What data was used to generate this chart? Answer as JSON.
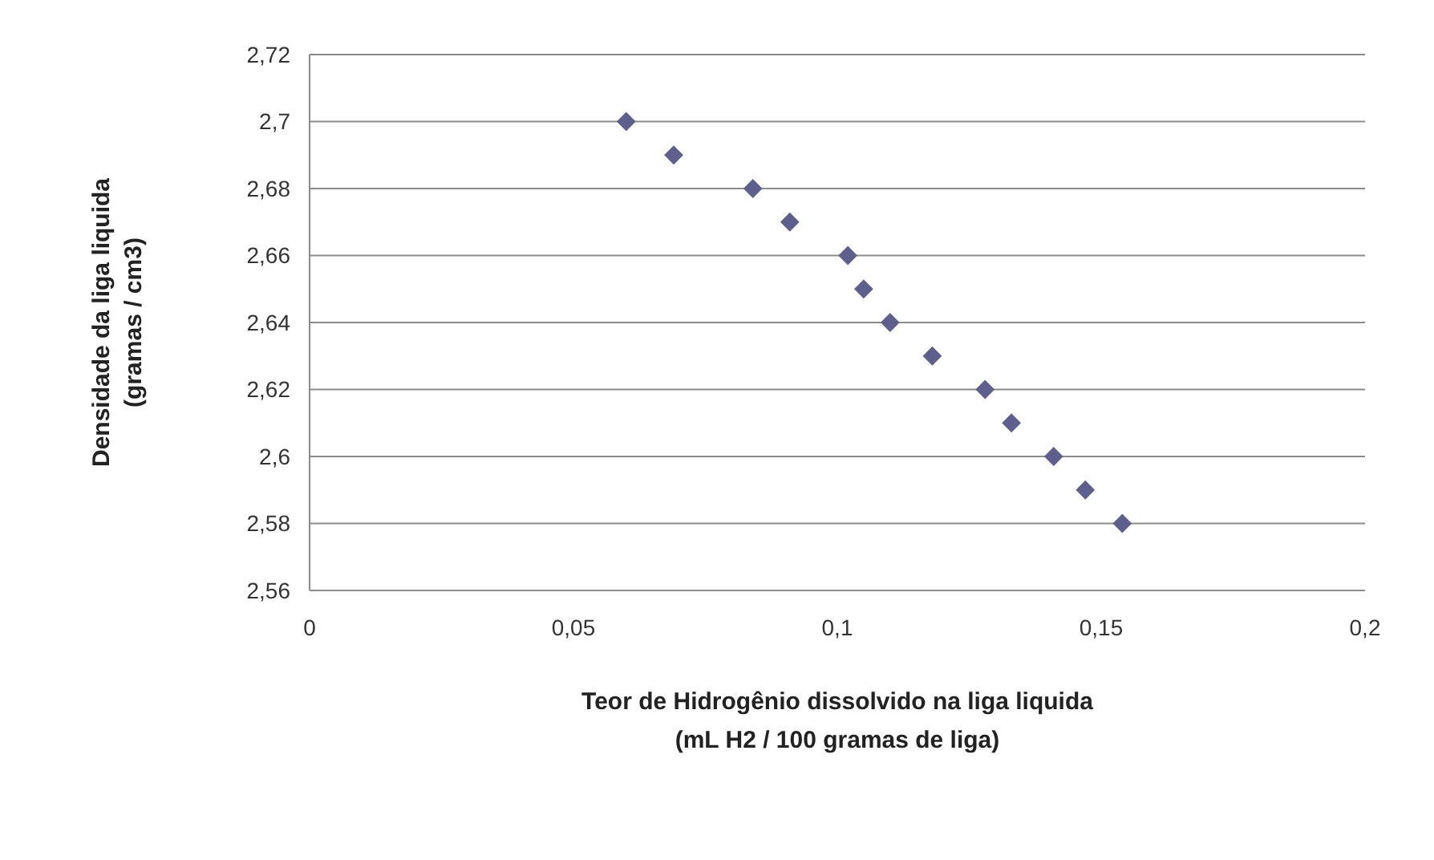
{
  "chart_data": {
    "type": "scatter",
    "xlabel": "Teor de Hidrogênio dissolvido na liga liquida\n(mL H2 / 100 gramas de liga)",
    "ylabel": "Densidade da liga liquida\n(gramas / cm3)",
    "x": [
      0.06,
      0.069,
      0.084,
      0.091,
      0.102,
      0.105,
      0.11,
      0.118,
      0.128,
      0.133,
      0.141,
      0.147,
      0.154
    ],
    "series": [
      {
        "color": "#5f5f8e",
        "values": [
          2.7,
          2.69,
          2.68,
          2.67,
          2.66,
          2.65,
          2.64,
          2.63,
          2.62,
          2.61,
          2.6,
          2.59,
          2.58
        ]
      }
    ],
    "xlim": [
      0,
      0.2
    ],
    "ylim": [
      2.56,
      2.72
    ],
    "xticks": [
      0,
      {
        "value": 0.05,
        "label": "0,05"
      },
      {
        "value": 0.1,
        "label": "0,1"
      },
      {
        "value": 0.15,
        "label": "0,15"
      },
      {
        "value": 0.2,
        "label": "0,2"
      }
    ],
    "yticks": [
      {
        "value": 2.56,
        "label": "2,56"
      },
      {
        "value": 2.58,
        "label": "2,58"
      },
      {
        "value": 2.6,
        "label": "2,6"
      },
      {
        "value": 2.62,
        "label": "2,62"
      },
      {
        "value": 2.64,
        "label": "2,64"
      },
      {
        "value": 2.66,
        "label": "2,66"
      },
      {
        "value": 2.68,
        "label": "2,68"
      },
      {
        "value": 2.7,
        "label": "2,7"
      },
      {
        "value": 2.72,
        "label": "2,72"
      }
    ],
    "grid": "y",
    "marker": "diamond"
  }
}
